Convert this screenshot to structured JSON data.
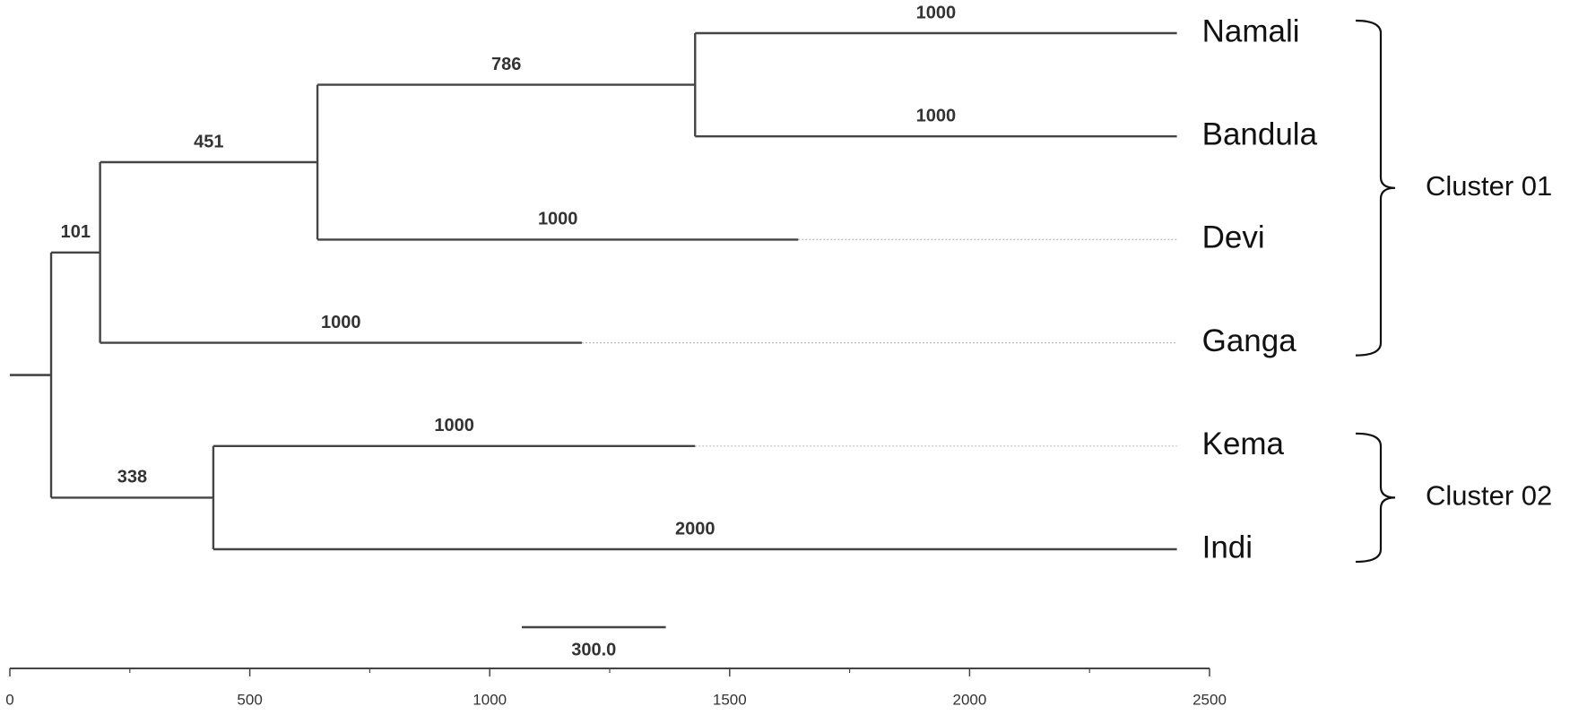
{
  "chart_data": {
    "type": "dendrogram",
    "xlim": [
      0,
      2500
    ],
    "xticks": [
      0,
      500,
      1000,
      1500,
      2000,
      2500
    ],
    "scale_bar": {
      "value": 300,
      "label": "300.0"
    },
    "tree": {
      "x": 0,
      "children": [
        {
          "x": 86,
          "children": [
            {
              "x": 188,
              "label": 101,
              "children": [
                {
                  "x": 641,
                  "label": 451,
                  "children": [
                    {
                      "x": 1428,
                      "label": 786,
                      "children": [
                        {
                          "name": "Namali",
                          "x": 2432,
                          "label": 1000
                        },
                        {
                          "name": "Bandula",
                          "x": 2432,
                          "label": 1000
                        }
                      ]
                    },
                    {
                      "name": "Devi",
                      "x": 1643,
                      "label": 1000
                    }
                  ]
                },
                {
                  "name": "Ganga",
                  "x": 1192,
                  "label": 1000
                }
              ]
            },
            {
              "x": 424,
              "label": 338,
              "children": [
                {
                  "name": "Kema",
                  "x": 1428,
                  "label": 1000
                },
                {
                  "name": "Indi",
                  "x": 2432,
                  "label": 2000
                }
              ]
            }
          ]
        }
      ]
    },
    "clusters": [
      "Cluster 01",
      "Cluster 02"
    ]
  }
}
